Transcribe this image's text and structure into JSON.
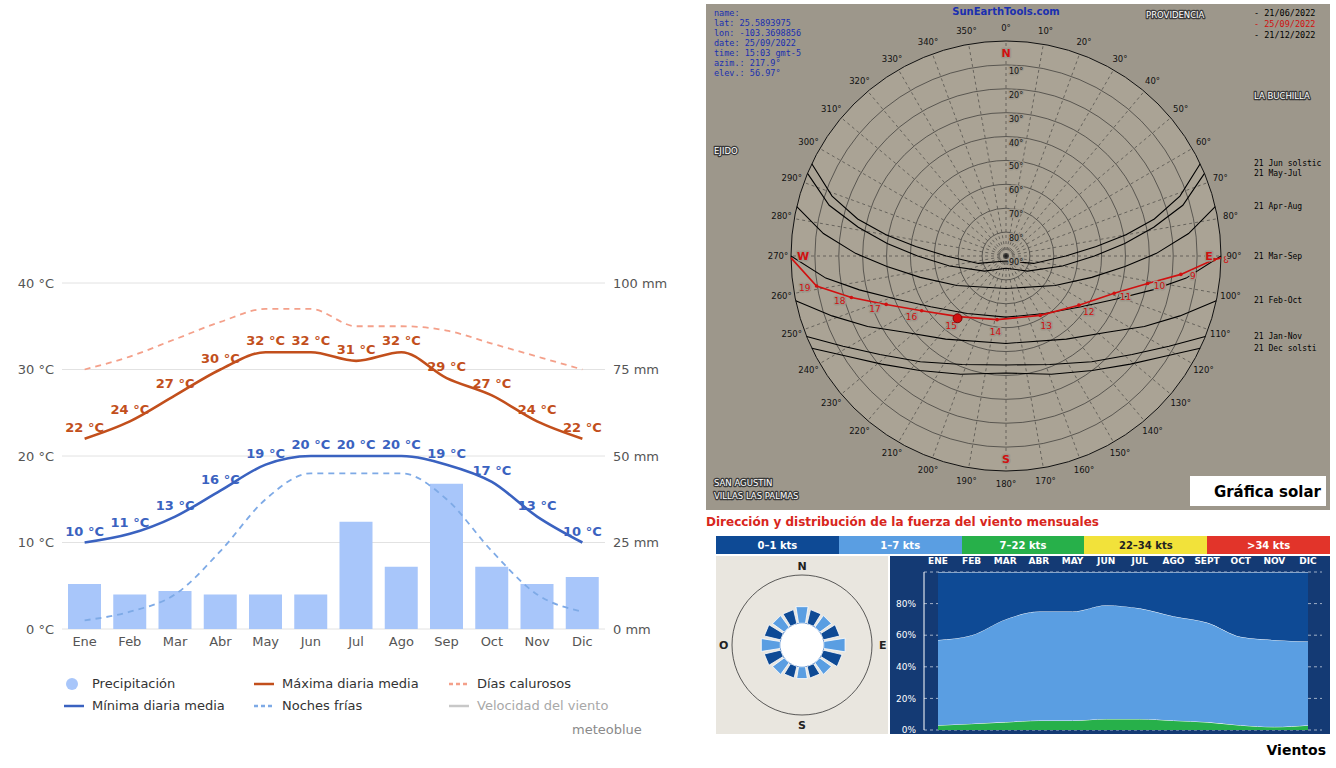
{
  "chart_data": [
    {
      "type": "combo",
      "source": "meteoblue",
      "grid": true,
      "legend": "bottom",
      "categories": [
        "Ene",
        "Feb",
        "Mar",
        "Abr",
        "May",
        "Jun",
        "Jul",
        "Ago",
        "Sep",
        "Oct",
        "Nov",
        "Dic"
      ],
      "ylim": [
        0,
        40
      ],
      "yticks": [
        {
          "value": 0,
          "label": "0 °C"
        },
        {
          "value": 10,
          "label": "10 °C"
        },
        {
          "value": 20,
          "label": "20 °C"
        },
        {
          "value": 30,
          "label": "30 °C"
        },
        {
          "value": 40,
          "label": "40 °C"
        }
      ],
      "y2lim": [
        0,
        100
      ],
      "y2ticks": [
        {
          "value": 0,
          "label": "0 mm"
        },
        {
          "value": 25,
          "label": "25 mm"
        },
        {
          "value": 50,
          "label": "50 mm"
        },
        {
          "value": 75,
          "label": "75 mm"
        },
        {
          "value": 100,
          "label": "100 mm"
        }
      ],
      "series": [
        {
          "name": "Precipitación",
          "type": "bar",
          "axis": "y2",
          "color": "#a8c6fa",
          "values": [
            13,
            10,
            11,
            10,
            10,
            10,
            31,
            18,
            42,
            18,
            13,
            15
          ]
        },
        {
          "name": "Mínima diaria media",
          "type": "line",
          "line_style": "solid",
          "color": "#3a62c0",
          "data_labels": true,
          "values": [
            10,
            11,
            13,
            16,
            19,
            20,
            20,
            20,
            19,
            17,
            13,
            10
          ],
          "value_labels": [
            "10 °C",
            "11 °C",
            "13 °C",
            "16 °C",
            "19 °C",
            "20 °C",
            "20 °C",
            "20 °C",
            "19 °C",
            "17 °C",
            "13 °C",
            "10 °C"
          ]
        },
        {
          "name": "Máxima diaria media",
          "type": "line",
          "line_style": "solid",
          "color": "#c24f1c",
          "data_labels": true,
          "values": [
            22,
            24,
            27,
            30,
            32,
            32,
            31,
            32,
            29,
            27,
            24,
            22
          ],
          "value_labels": [
            "22 °C",
            "24 °C",
            "27 °C",
            "30 °C",
            "32 °C",
            "32 °C",
            "31 °C",
            "32 °C",
            "29 °C",
            "27 °C",
            "24 °C",
            "22 °C"
          ]
        },
        {
          "name": "Noches frías",
          "type": "line",
          "line_style": "dashed",
          "color": "#7eaae6",
          "values": [
            1,
            2,
            4,
            9,
            15,
            18,
            18,
            18,
            15,
            9,
            4,
            2
          ]
        },
        {
          "name": "Días calurosos",
          "type": "line",
          "line_style": "dashed",
          "color": "#f4a08a",
          "values": [
            30,
            31.5,
            33.5,
            35.5,
            37,
            37,
            35,
            35,
            34.5,
            33,
            31.5,
            30
          ]
        },
        {
          "name": "Velocidad del viento",
          "type": "line",
          "line_style": "solid",
          "color": "#c8c8c8",
          "values": [
            null,
            null,
            null,
            null,
            null,
            null,
            null,
            null,
            null,
            null,
            null,
            null
          ]
        }
      ]
    },
    {
      "type": "sun_path",
      "title": "Gráfica solar",
      "source": "SunEarthTools.com",
      "info": [
        "name:",
        "lat: 25.5893975",
        "lon: -103.3698856",
        "date: 25/09/2022",
        "time: 15:03 gmt-5",
        "azim.: 217.9°",
        "elev.: 56.97°"
      ],
      "dates": [
        {
          "label": "- 21/06/2022",
          "color": "#000000"
        },
        {
          "label": "- 25/09/2022",
          "color": "#d01010"
        },
        {
          "label": "- 21/12/2022",
          "color": "#000000"
        }
      ],
      "cardinals": [
        "N",
        "E",
        "S",
        "W"
      ],
      "places": [
        "PROVIDENCIA",
        "LA BUCHILLA",
        "EJIDO",
        "SAN AGUSTIN",
        "VILLAS LAS PALMAS"
      ],
      "azimuth_ticks": [
        {
          "value": 0,
          "label": "0°"
        },
        {
          "value": 10,
          "label": "10°"
        },
        {
          "value": 20,
          "label": "20°"
        },
        {
          "value": 30,
          "label": "30°"
        },
        {
          "value": 40,
          "label": "40°"
        },
        {
          "value": 50,
          "label": "50°"
        },
        {
          "value": 60,
          "label": "60°"
        },
        {
          "value": 70,
          "label": "70°"
        },
        {
          "value": 80,
          "label": "80°"
        },
        {
          "value": 90,
          "label": "90°"
        },
        {
          "value": 100,
          "label": "100°"
        },
        {
          "value": 110,
          "label": "110°"
        },
        {
          "value": 120,
          "label": "120°"
        },
        {
          "value": 130,
          "label": "130°"
        },
        {
          "value": 140,
          "label": "140°"
        },
        {
          "value": 150,
          "label": "150°"
        },
        {
          "value": 160,
          "label": "160°"
        },
        {
          "value": 170,
          "label": "170°"
        },
        {
          "value": 180,
          "label": "180°"
        },
        {
          "value": 190,
          "label": "190°"
        },
        {
          "value": 200,
          "label": "200°"
        },
        {
          "value": 210,
          "label": "210°"
        },
        {
          "value": 220,
          "label": "220°"
        },
        {
          "value": 230,
          "label": "230°"
        },
        {
          "value": 240,
          "label": "240°"
        },
        {
          "value": 250,
          "label": "250°"
        },
        {
          "value": 260,
          "label": "260°"
        },
        {
          "value": 270,
          "label": "270°"
        },
        {
          "value": 280,
          "label": "280°"
        },
        {
          "value": 290,
          "label": "290°"
        },
        {
          "value": 300,
          "label": "300°"
        },
        {
          "value": 310,
          "label": "310°"
        },
        {
          "value": 320,
          "label": "320°"
        },
        {
          "value": 330,
          "label": "330°"
        },
        {
          "value": 340,
          "label": "340°"
        },
        {
          "value": 350,
          "label": "350°"
        }
      ],
      "elevation_ticks": [
        {
          "value": 10,
          "label": "10°"
        },
        {
          "value": 20,
          "label": "20°"
        },
        {
          "value": 30,
          "label": "30°"
        },
        {
          "value": 40,
          "label": "40°"
        },
        {
          "value": 50,
          "label": "50°"
        },
        {
          "value": 60,
          "label": "60°"
        },
        {
          "value": 70,
          "label": "70°"
        },
        {
          "value": 80,
          "label": "80°"
        },
        {
          "value": 90,
          "label": "90°"
        }
      ],
      "paths": [
        {
          "name": "21 Jun solstic",
          "points": [
            [
              64.6,
              0
            ],
            [
              71,
              13
            ],
            [
              76,
              26
            ],
            [
              80,
              39
            ],
            [
              84,
              52
            ],
            [
              90,
              65
            ],
            [
              105,
              78
            ],
            [
              180,
              87.9
            ],
            [
              255,
              78
            ],
            [
              270,
              65
            ],
            [
              276,
              52
            ],
            [
              280,
              39
            ],
            [
              284,
              26
            ],
            [
              289,
              13
            ],
            [
              295.4,
              0
            ]
          ]
        },
        {
          "name": "21 May-Jul",
          "points": [
            [
              67.4,
              0
            ],
            [
              74,
              13
            ],
            [
              79,
              27
            ],
            [
              84,
              40
            ],
            [
              90,
              53
            ],
            [
              100,
              66
            ],
            [
              125,
              79
            ],
            [
              180,
              84.9
            ],
            [
              235,
              79
            ],
            [
              260,
              66
            ],
            [
              270,
              53
            ],
            [
              276,
              40
            ],
            [
              281,
              27
            ],
            [
              286,
              13
            ],
            [
              292.6,
              0
            ]
          ]
        },
        {
          "name": "21 Apr-Aug",
          "points": [
            [
              76.7,
              0
            ],
            [
              83,
              13
            ],
            [
              89,
              27
            ],
            [
              95,
              40
            ],
            [
              104,
              53
            ],
            [
              121,
              66
            ],
            [
              180,
              76.4
            ],
            [
              239,
              66
            ],
            [
              256,
              53
            ],
            [
              265,
              40
            ],
            [
              271,
              27
            ],
            [
              277,
              13
            ],
            [
              283.3,
              0
            ]
          ]
        },
        {
          "name": "21 Mar-Sep",
          "points": [
            [
              90,
              0
            ],
            [
              97,
              14
            ],
            [
              103,
              27
            ],
            [
              111,
              40
            ],
            [
              124,
              52
            ],
            [
              146,
              61
            ],
            [
              180,
              64.4
            ],
            [
              214,
              61
            ],
            [
              236,
              52
            ],
            [
              249,
              40
            ],
            [
              257,
              27
            ],
            [
              263,
              14
            ],
            [
              270,
              0
            ]
          ]
        },
        {
          "name": "21 Feb-Oct",
          "points": [
            [
              102,
              0
            ],
            [
              109,
              13
            ],
            [
              117,
              25
            ],
            [
              127,
              37
            ],
            [
              144,
              47
            ],
            [
              180,
              53.4
            ],
            [
              216,
              47
            ],
            [
              233,
              37
            ],
            [
              243,
              25
            ],
            [
              251,
              13
            ],
            [
              258,
              0
            ]
          ]
        },
        {
          "name": "21 Jan-Nov",
          "points": [
            [
              112,
              0
            ],
            [
              119,
              12
            ],
            [
              128,
              23
            ],
            [
              141,
              33
            ],
            [
              158,
              41
            ],
            [
              180,
              44.4
            ],
            [
              202,
              41
            ],
            [
              219,
              33
            ],
            [
              232,
              23
            ],
            [
              241,
              12
            ],
            [
              248,
              0
            ]
          ]
        },
        {
          "name": "21 Dec solsti",
          "points": [
            [
              115.4,
              0
            ],
            [
              122,
              11
            ],
            [
              131,
              21
            ],
            [
              143,
              30
            ],
            [
              159,
              37
            ],
            [
              180,
              41
            ],
            [
              201,
              37
            ],
            [
              217,
              30
            ],
            [
              229,
              21
            ],
            [
              238,
              11
            ],
            [
              244.6,
              0
            ]
          ]
        }
      ],
      "current_path": {
        "color": "#d01010",
        "points": [
          {
            "hour": null,
            "az": 90.5,
            "el": 0
          },
          {
            "hour": 8,
            "az": 91,
            "el": 2.9
          },
          {
            "hour": 9,
            "az": 96,
            "el": 16.4
          },
          {
            "hour": 10,
            "az": 101,
            "el": 29.6
          },
          {
            "hour": 11,
            "az": 109,
            "el": 42.1
          },
          {
            "hour": 12,
            "az": 124,
            "el": 53.2
          },
          {
            "hour": 13,
            "az": 150,
            "el": 61.3
          },
          {
            "hour": 14,
            "az": 188,
            "el": 63.1
          },
          {
            "hour": 15,
            "az": 218,
            "el": 57.8
          },
          {
            "hour": 16,
            "az": 237,
            "el": 47.9
          },
          {
            "hour": 17,
            "az": 248,
            "el": 35.9
          },
          {
            "hour": 18,
            "az": 255,
            "el": 23
          },
          {
            "hour": 19,
            "az": 261,
            "el": 9.7
          },
          {
            "hour": null,
            "az": 269.5,
            "el": 0
          }
        ]
      },
      "sun_position": {
        "azimuth": 217.9,
        "elevation": 56.97
      }
    },
    {
      "type": "area",
      "title": "Dirección y distribución de la fuerza del viento mensuales",
      "caption": "Vientos",
      "stacked": true,
      "grid": true,
      "legend": "top",
      "categories": [
        "ENE",
        "FEB",
        "MAR",
        "ABR",
        "MAY",
        "JUN",
        "JUL",
        "AGO",
        "SEPT",
        "OCT",
        "NOV",
        "DIC"
      ],
      "ylim": [
        0,
        100
      ],
      "yticks": [
        {
          "value": 0,
          "label": "0%"
        },
        {
          "value": 20,
          "label": "20%"
        },
        {
          "value": 40,
          "label": "40%"
        },
        {
          "value": 60,
          "label": "60%"
        },
        {
          "value": 80,
          "label": "80%"
        }
      ],
      "compass": [
        "N",
        "E",
        "S",
        "O"
      ],
      "rose_values": [
        7,
        6,
        6,
        7,
        9,
        8,
        6,
        5,
        5,
        5,
        6,
        7,
        8,
        7,
        6,
        6
      ],
      "series": [
        {
          "name": "0–1 kts",
          "color": "#0e4a95",
          "values": [
            43,
            40,
            30,
            25,
            25,
            21,
            23,
            28,
            32,
            41,
            43,
            44
          ]
        },
        {
          "name": "1–7 kts",
          "color": "#5a9ee2",
          "values": [
            54,
            56,
            65,
            69,
            69,
            72,
            70,
            66,
            63,
            56,
            55,
            53
          ]
        },
        {
          "name": "7–22 kts",
          "color": "#27b04a",
          "values": [
            3,
            4,
            5,
            6,
            6,
            7,
            7,
            6,
            5,
            3,
            2,
            3
          ]
        },
        {
          "name": "22–34 kts",
          "color": "#f2e23a",
          "values": [
            0,
            0,
            0,
            0,
            0,
            0,
            0,
            0,
            0,
            0,
            0,
            0
          ]
        },
        {
          "name": ">34 kts",
          "color": "#e2342a",
          "values": [
            0,
            0,
            0,
            0,
            0,
            0,
            0,
            0,
            0,
            0,
            0,
            0
          ]
        }
      ]
    }
  ]
}
